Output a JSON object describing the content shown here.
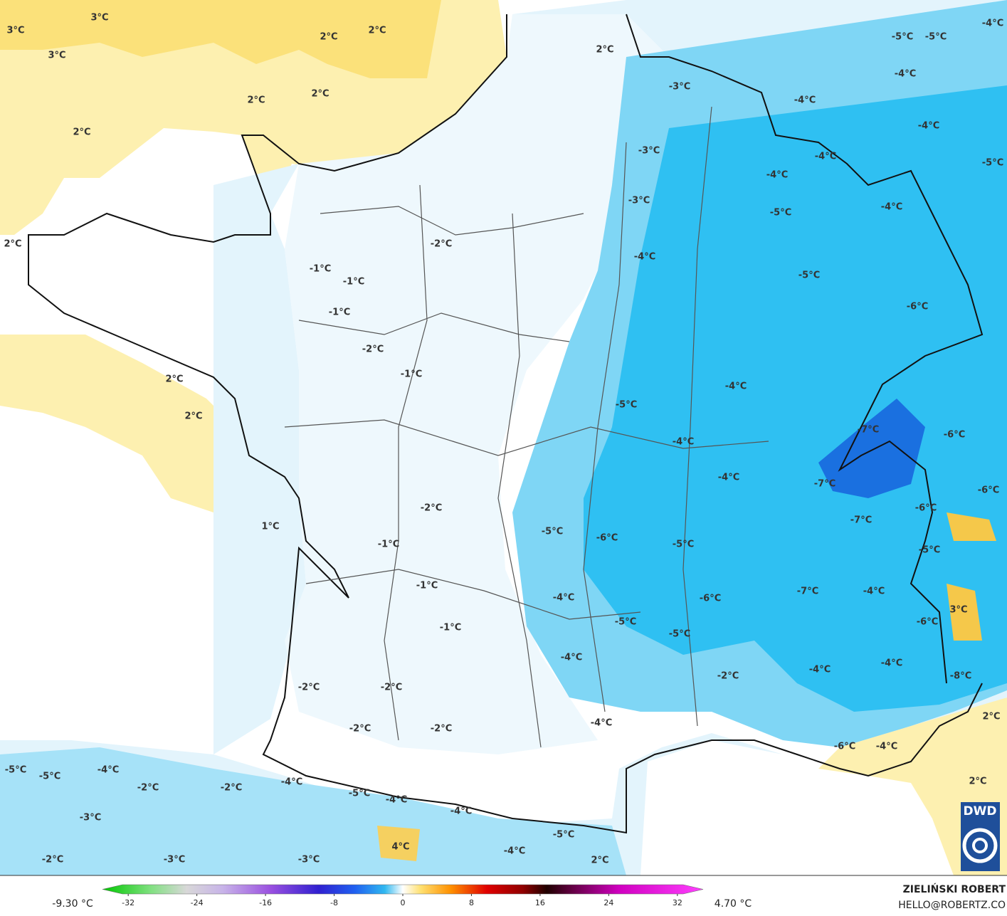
{
  "map": {
    "labels": [
      "3°C",
      "3°C",
      "2°C",
      "2°C",
      "3°C",
      "2°C",
      "2°C",
      "2°C",
      "2°C",
      "2°C",
      "-5°C",
      "-5°C",
      "-4°C",
      "-4°C",
      "-3°C",
      "-4°C",
      "-4°C",
      "-3°C",
      "-4°C",
      "-4°C",
      "-5°C",
      "-3°C",
      "-5°C",
      "-4°C",
      "-2°C",
      "-4°C",
      "-1°C",
      "-1°C",
      "-5°C",
      "-1°C",
      "-6°C",
      "-2°C",
      "-1°C",
      "2°C",
      "-4°C",
      "-5°C",
      "2°C",
      "-7°C",
      "-6°C",
      "-4°C",
      "-4°C",
      "-7°C",
      "-6°C",
      "-2°C",
      "-6°C",
      "-7°C",
      "1°C",
      "-5°C",
      "-6°C",
      "-5°C",
      "-1°C",
      "-5°C",
      "-1°C",
      "-7°C",
      "-4°C",
      "-4°C",
      "-6°C",
      "3°C",
      "-5°C",
      "-6°C",
      "-1°C",
      "-5°C",
      "-4°C",
      "-4°C",
      "-4°C",
      "-8°C",
      "-2°C",
      "-2°C",
      "-2°C",
      "2°C",
      "-4°C",
      "-2°C",
      "-2°C",
      "-6°C",
      "-4°C",
      "-5°C",
      "-5°C",
      "-4°C",
      "-2°C",
      "-2°C",
      "-4°C",
      "2°C",
      "-5°C",
      "-4°C",
      "-4°C",
      "-3°C",
      "-5°C",
      "4°C",
      "-4°C",
      "-2°C",
      "-3°C",
      "-3°C",
      "2°C"
    ],
    "colorbar": {
      "min_label": "-9.30 °C",
      "max_label": "4.70 °C",
      "lim": [
        -35,
        35
      ],
      "ticks": [
        -32,
        -24,
        -16,
        -8,
        0,
        8,
        16,
        24,
        32
      ]
    },
    "logo": "DWD",
    "author": "ZIELIŃSKI ROBERT",
    "contact": "HELLO@ROBERTZ.CO"
  }
}
